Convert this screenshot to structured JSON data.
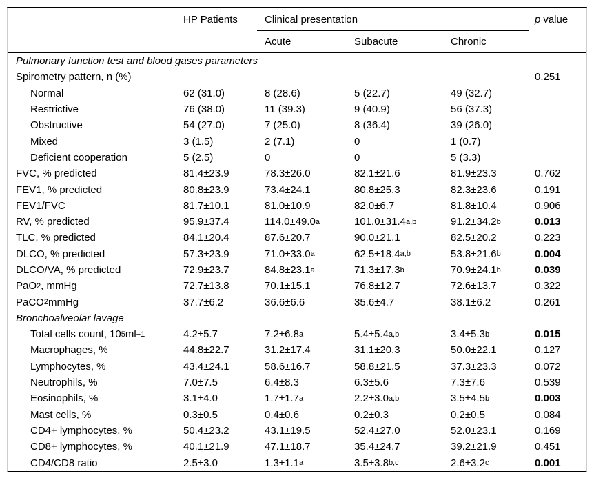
{
  "table": {
    "header": {
      "hp_col": "HP Patients",
      "group_col": "Clinical presentation",
      "subcols": [
        "Acute",
        "Subacute",
        "Chronic"
      ],
      "p_italic": "p",
      "p_rest": "value"
    },
    "rows": [
      {
        "type": "section",
        "label": "Pulmonary function test and blood gases parameters"
      },
      {
        "type": "row",
        "indent": 0,
        "label": "Spirometry pattern, n (%)",
        "cells": [
          "",
          "",
          "",
          ""
        ],
        "p": "0.251",
        "p_bold": false
      },
      {
        "type": "row",
        "indent": 1,
        "label": "Normal",
        "cells": [
          "62 (31.0)",
          "8 (28.6)",
          "5 (22.7)",
          "49 (32.7)"
        ],
        "p": "",
        "p_bold": false
      },
      {
        "type": "row",
        "indent": 1,
        "label": "Restrictive",
        "cells": [
          "76 (38.0)",
          "11 (39.3)",
          "9 (40.9)",
          "56 (37.3)"
        ],
        "p": "",
        "p_bold": false
      },
      {
        "type": "row",
        "indent": 1,
        "label": "Obstructive",
        "cells": [
          "54 (27.0)",
          "7 (25.0)",
          "8 (36.4)",
          "39 (26.0)"
        ],
        "p": "",
        "p_bold": false
      },
      {
        "type": "row",
        "indent": 1,
        "label": "Mixed",
        "cells": [
          "3 (1.5)",
          "2 (7.1)",
          "0",
          "1 (0.7)"
        ],
        "p": "",
        "p_bold": false
      },
      {
        "type": "row",
        "indent": 1,
        "label": "Deficient cooperation",
        "cells": [
          "5 (2.5)",
          "0",
          "0",
          "5 (3.3)"
        ],
        "p": "",
        "p_bold": false
      },
      {
        "type": "row",
        "indent": 0,
        "label": "FVC, % predicted",
        "cells": [
          "81.4±23.9",
          "78.3±26.0",
          "82.1±21.6",
          "81.9±23.3"
        ],
        "p": "0.762",
        "p_bold": false
      },
      {
        "type": "row",
        "indent": 0,
        "label": "FEV1, % predicted",
        "cells": [
          "80.8±23.9",
          "73.4±24.1",
          "80.8±25.3",
          "82.3±23.6"
        ],
        "p": "0.191",
        "p_bold": false
      },
      {
        "type": "row",
        "indent": 0,
        "label": "FEV1/FVC",
        "cells": [
          "81.7±10.1",
          "81.0±10.9",
          "82.0±6.7",
          "81.8±10.4"
        ],
        "p": "0.906",
        "p_bold": false
      },
      {
        "type": "row",
        "indent": 0,
        "label": "RV, % predicted",
        "cells": [
          "95.9±37.4",
          "114.0±49.0^{a}",
          "101.0±31.4^{a,b}",
          "91.2±34.2^{b}"
        ],
        "p": "0.013",
        "p_bold": true
      },
      {
        "type": "row",
        "indent": 0,
        "label": "TLC, % predicted",
        "cells": [
          "84.1±20.4",
          "87.6±20.7",
          "90.0±21.1",
          "82.5±20.2"
        ],
        "p": "0.223",
        "p_bold": false
      },
      {
        "type": "row",
        "indent": 0,
        "label": "DLCO, % predicted",
        "cells": [
          "57.3±23.9",
          "71.0±33.0 ^{a}",
          "62.5±18.4 ^{a,b}",
          "53.8±21.6^{b}"
        ],
        "p": "0.004",
        "p_bold": true
      },
      {
        "type": "row",
        "indent": 0,
        "label": "DLCO/VA, % predicted",
        "cells": [
          "72.9±23.7",
          "84.8±23.1^{a}",
          "71.3±17.3^{b}",
          "70.9±24.1^{b}"
        ],
        "p": "0.039",
        "p_bold": true
      },
      {
        "type": "row",
        "indent": 0,
        "label": "PaO~{2}, mmHg",
        "cells": [
          "72.7±13.8",
          "70.1±15.1",
          "76.8±12.7",
          "72.6±13.7"
        ],
        "p": "0.322",
        "p_bold": false
      },
      {
        "type": "row",
        "indent": 0,
        "label": "PaCO~{2} mmHg",
        "cells": [
          "37.7±6.2",
          "36.6±6.6",
          "35.6±4.7",
          "38.1±6.2"
        ],
        "p": "0.261",
        "p_bold": false
      },
      {
        "type": "section",
        "label": "Bronchoalveolar lavage"
      },
      {
        "type": "row",
        "indent": 1,
        "label": "Total cells count, 10^{5} ml^{−1}",
        "cells": [
          "4.2±5.7",
          "7.2±6.8^{a}",
          "5.4±5.4 ^{a,b}",
          "3.4±5.3^{b}"
        ],
        "p": "0.015",
        "p_bold": true
      },
      {
        "type": "row",
        "indent": 1,
        "label": "Macrophages, %",
        "cells": [
          "44.8±22.7",
          "31.2±17.4",
          "31.1±20.3",
          "50.0±22.1"
        ],
        "p": "0.127",
        "p_bold": false
      },
      {
        "type": "row",
        "indent": 1,
        "label": "Lymphocytes, %",
        "cells": [
          "43.4±24.1",
          "58.6±16.7",
          "58.8±21.5",
          "37.3±23.3"
        ],
        "p": "0.072",
        "p_bold": false
      },
      {
        "type": "row",
        "indent": 1,
        "label": "Neutrophils, %",
        "cells": [
          "7.0±7.5",
          "6.4±8.3",
          "6.3±5.6",
          "7.3±7.6"
        ],
        "p": "0.539",
        "p_bold": false
      },
      {
        "type": "row",
        "indent": 1,
        "label": "Eosinophils, %",
        "cells": [
          "3.1±4.0",
          "1.7±1.7 ^{a}",
          "2.2±3.0 ^{a,b}",
          "3.5±4.5 ^{b}"
        ],
        "p": "0.003",
        "p_bold": true
      },
      {
        "type": "row",
        "indent": 1,
        "label": "Mast cells, %",
        "cells": [
          "0.3±0.5",
          "0.4±0.6",
          "0.2±0.3",
          "0.2±0.5"
        ],
        "p": "0.084",
        "p_bold": false
      },
      {
        "type": "row",
        "indent": 1,
        "label": "CD4+ lymphocytes, %",
        "cells": [
          "50.4±23.2",
          "43.1±19.5",
          "52.4±27.0",
          "52.0±23.1"
        ],
        "p": "0.169",
        "p_bold": false
      },
      {
        "type": "row",
        "indent": 1,
        "label": "CD8+ lymphocytes, %",
        "cells": [
          "40.1±21.9",
          "47.1±18.7",
          "35.4±24.7",
          "39.2±21.9"
        ],
        "p": "0.451",
        "p_bold": false
      },
      {
        "type": "row",
        "indent": 1,
        "label": "CD4/CD8 ratio",
        "cells": [
          "2.5±3.0",
          "1.3±1.1^{a}",
          "3.5±3.8^{b,c}",
          "2.6±3.2^{c}"
        ],
        "p": "0.001",
        "p_bold": true
      }
    ]
  }
}
